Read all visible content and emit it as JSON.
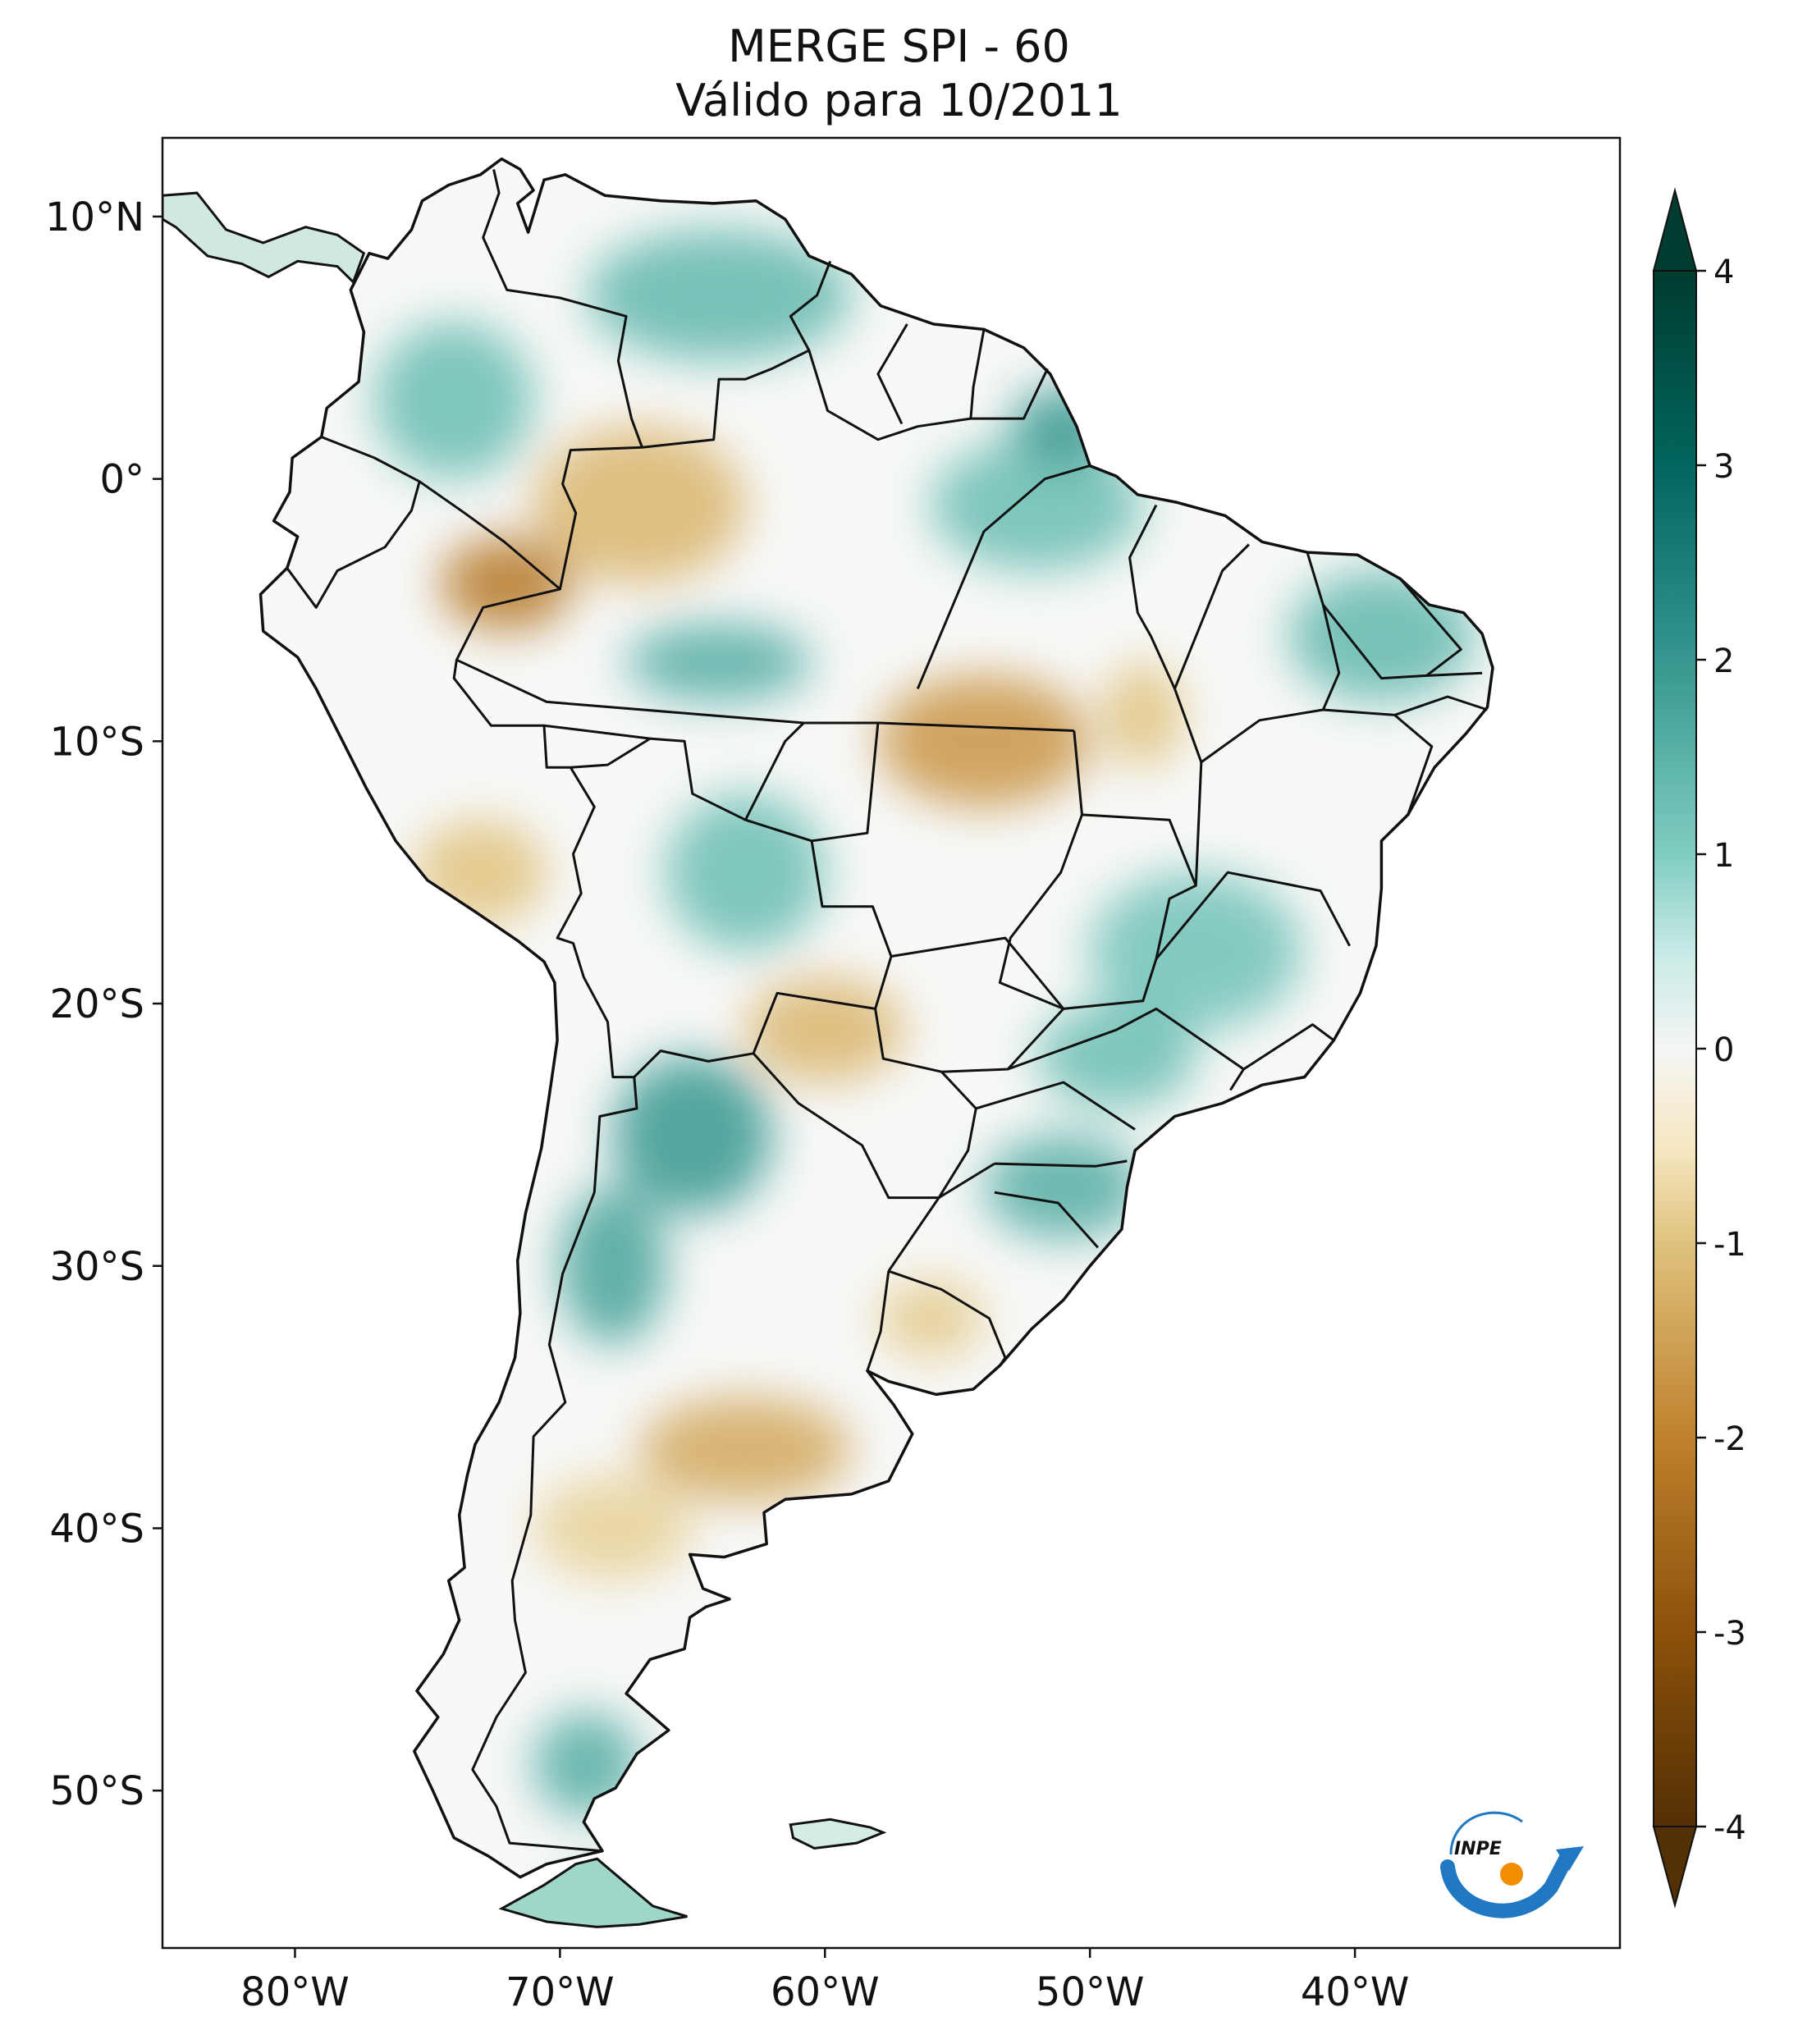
{
  "title": {
    "line1": "MERGE   SPI - 60",
    "line2": "Válido para 10/2011"
  },
  "map": {
    "lon_range": [
      -85,
      -30
    ],
    "lat_range": [
      -56,
      13
    ],
    "lat_ticks": [
      {
        "value": 10,
        "label": "10°N"
      },
      {
        "value": 0,
        "label": "0°"
      },
      {
        "value": -10,
        "label": "10°S"
      },
      {
        "value": -20,
        "label": "20°S"
      },
      {
        "value": -30,
        "label": "30°S"
      },
      {
        "value": -40,
        "label": "40°S"
      },
      {
        "value": -50,
        "label": "50°S"
      }
    ],
    "lon_ticks": [
      {
        "value": -80,
        "label": "80°W"
      },
      {
        "value": -70,
        "label": "70°W"
      },
      {
        "value": -60,
        "label": "60°W"
      },
      {
        "value": -50,
        "label": "50°W"
      },
      {
        "value": -40,
        "label": "40°W"
      }
    ],
    "colors": {
      "wet_dark": "#0b5e55",
      "wet": "#5fb8a8",
      "wet_light": "#bfe6de",
      "neutral": "#f8f8f8",
      "dry_light": "#efdcb3",
      "dry": "#c99a4e",
      "dry_dark": "#6b3f10"
    },
    "regions": [
      {
        "name": "venezuela-guiana-wet",
        "lon": -64,
        "lat": 7,
        "rx": 5,
        "ry": 2.5,
        "anomaly": 1.4
      },
      {
        "name": "colombia-wet",
        "lon": -74,
        "lat": 3,
        "rx": 3,
        "ry": 3,
        "anomaly": 1.3
      },
      {
        "name": "amazon-north-dry",
        "lon": -67,
        "lat": -1,
        "rx": 4,
        "ry": 3,
        "anomaly": -1.2
      },
      {
        "name": "peru-north-dry",
        "lon": -72,
        "lat": -4,
        "rx": 2.5,
        "ry": 1.8,
        "anomaly": -2.2
      },
      {
        "name": "para-north-wet",
        "lon": -52,
        "lat": -1,
        "rx": 4,
        "ry": 2.5,
        "anomaly": 1.3
      },
      {
        "name": "amapa-wet",
        "lon": -51,
        "lat": 2,
        "rx": 2,
        "ry": 1.5,
        "anomaly": 2.0
      },
      {
        "name": "amazon-central-wet",
        "lon": -64,
        "lat": -7,
        "rx": 3.5,
        "ry": 1.5,
        "anomaly": 1.6
      },
      {
        "name": "mato-grosso-dry",
        "lon": -54,
        "lat": -10,
        "rx": 4,
        "ry": 2.5,
        "anomaly": -1.7
      },
      {
        "name": "tocantins-dry",
        "lon": -48,
        "lat": -9,
        "rx": 1.5,
        "ry": 2,
        "anomaly": -1.0
      },
      {
        "name": "northeast-wet",
        "lon": -39,
        "lat": -6,
        "rx": 3.5,
        "ry": 2.5,
        "anomaly": 1.4
      },
      {
        "name": "bolivia-wet",
        "lon": -63,
        "lat": -15,
        "rx": 3,
        "ry": 3,
        "anomaly": 1.3
      },
      {
        "name": "peru-south-dry",
        "lon": -73,
        "lat": -15,
        "rx": 2.5,
        "ry": 2,
        "anomaly": -1.0
      },
      {
        "name": "minas-gerais-wet",
        "lon": -46,
        "lat": -18,
        "rx": 4,
        "ry": 3,
        "anomaly": 1.2
      },
      {
        "name": "paraguay-dry",
        "lon": -60,
        "lat": -21,
        "rx": 3,
        "ry": 2,
        "anomaly": -1.2
      },
      {
        "name": "sao-paulo-wet",
        "lon": -49,
        "lat": -22,
        "rx": 3,
        "ry": 2,
        "anomaly": 1.3
      },
      {
        "name": "argentina-north-wet",
        "lon": -65,
        "lat": -25,
        "rx": 3,
        "ry": 3,
        "anomaly": 2.0
      },
      {
        "name": "argentina-andes-wet",
        "lon": -68,
        "lat": -30,
        "rx": 2,
        "ry": 3,
        "anomaly": 1.8
      },
      {
        "name": "parana-sc-wet",
        "lon": -51,
        "lat": -27,
        "rx": 3,
        "ry": 2,
        "anomaly": 1.6
      },
      {
        "name": "pampas-dry",
        "lon": -63,
        "lat": -37,
        "rx": 4,
        "ry": 2,
        "anomaly": -1.4
      },
      {
        "name": "uruguay-dry",
        "lon": -56,
        "lat": -32,
        "rx": 2,
        "ry": 1.5,
        "anomaly": -0.9
      },
      {
        "name": "patagonia-north-dry",
        "lon": -68,
        "lat": -40,
        "rx": 3,
        "ry": 2,
        "anomaly": -0.8
      },
      {
        "name": "patagonia-south-wet",
        "lon": -69,
        "lat": -49,
        "rx": 2,
        "ry": 2,
        "anomaly": 1.6
      },
      {
        "name": "tierra-del-fuego-wet",
        "lon": -68,
        "lat": -54,
        "rx": 2,
        "ry": 0.8,
        "anomaly": 1.4
      }
    ]
  },
  "colorbar": {
    "min": -4,
    "max": 4,
    "stops": [
      {
        "value": -4,
        "color": "#543005"
      },
      {
        "value": -3,
        "color": "#8c510a"
      },
      {
        "value": -2,
        "color": "#bf812d"
      },
      {
        "value": -1,
        "color": "#dfc27d"
      },
      {
        "value": -0.5,
        "color": "#f6e8c3"
      },
      {
        "value": 0,
        "color": "#f5f5f5"
      },
      {
        "value": 0.5,
        "color": "#c7eae5"
      },
      {
        "value": 1,
        "color": "#80cdc1"
      },
      {
        "value": 2,
        "color": "#35978f"
      },
      {
        "value": 3,
        "color": "#01665e"
      },
      {
        "value": 4,
        "color": "#003c30"
      }
    ],
    "ticks": [
      {
        "value": 4,
        "label": "4"
      },
      {
        "value": 3,
        "label": "3"
      },
      {
        "value": 2,
        "label": "2"
      },
      {
        "value": 1,
        "label": "1"
      },
      {
        "value": 0,
        "label": "0"
      },
      {
        "value": -1,
        "label": "-1"
      },
      {
        "value": -2,
        "label": "-2"
      },
      {
        "value": -3,
        "label": "-3"
      },
      {
        "value": -4,
        "label": "-4"
      }
    ]
  },
  "logo": {
    "text": "INPE",
    "color_arrow": "#1f78c1",
    "color_dot": "#f28c00"
  }
}
